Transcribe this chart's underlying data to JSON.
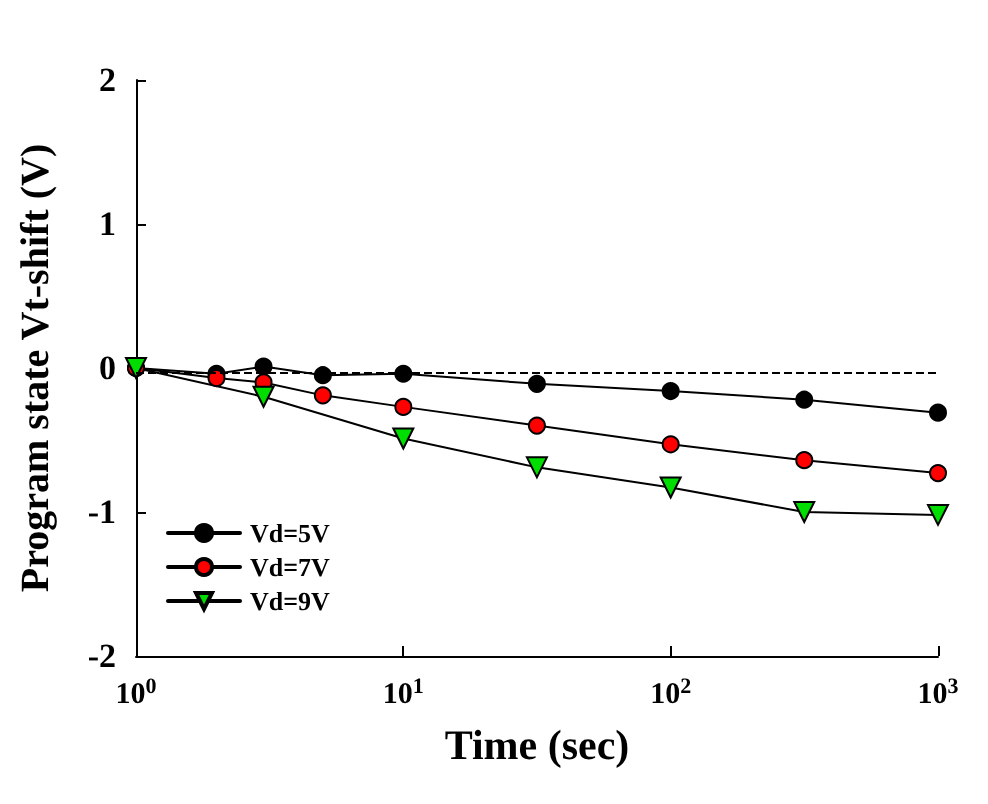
{
  "chart_data": {
    "type": "line",
    "xlabel": "Time (sec)",
    "ylabel": "Program state Vt-shift (V)",
    "x": [
      1,
      2,
      3,
      5,
      10,
      31.6,
      100,
      316,
      1000
    ],
    "log": "x",
    "xlim": [
      1,
      1000
    ],
    "xticks": [
      {
        "value": 1,
        "label": "10$^{0}$"
      },
      {
        "value": 10,
        "label": "10$^{1}$"
      },
      {
        "value": 100,
        "label": "10$^{2}$"
      },
      {
        "value": 1000,
        "label": "10$^{3}$"
      }
    ],
    "ylim": [
      -2,
      2
    ],
    "yticks": [
      -2,
      -1,
      0,
      1,
      2
    ],
    "grid": false,
    "legend": "bottom left",
    "line_style": "solid",
    "ref_lines": [
      {
        "axis": "y",
        "value": -0.03,
        "color": "#000000",
        "line_style": "dashed"
      }
    ],
    "series": [
      {
        "name": "Vd=5V",
        "color": "#000000",
        "marker": "circle",
        "values": [
          0,
          -0.04,
          0.01,
          -0.05,
          -0.04,
          -0.11,
          -0.16,
          -0.22,
          -0.31
        ]
      },
      {
        "name": "Vd=7V",
        "color": "#ff0000",
        "marker": "circle",
        "values": [
          0,
          -0.07,
          -0.1,
          -0.19,
          -0.27,
          -0.4,
          -0.53,
          -0.64,
          -0.73
        ]
      },
      {
        "name": "Vd=9V",
        "color": "#00dd00",
        "marker": "triangle",
        "x": [
          1,
          3,
          10,
          31.6,
          100,
          316,
          1000
        ],
        "values": [
          0,
          -0.2,
          -0.49,
          -0.69,
          -0.83,
          -1.0,
          -1.02
        ]
      }
    ]
  }
}
